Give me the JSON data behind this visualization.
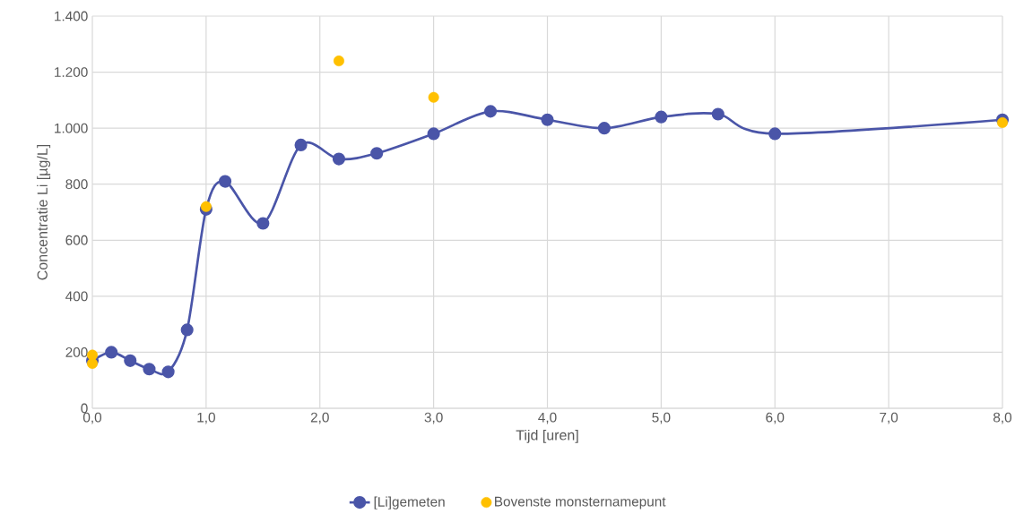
{
  "chart_data": {
    "type": "line",
    "xlabel": "Tijd [uren]",
    "ylabel": "Concentratie Li [µg/L]",
    "xlim": [
      0,
      8
    ],
    "ylim": [
      0,
      1400
    ],
    "xticks": [
      {
        "value": 0,
        "label": "0,0"
      },
      {
        "value": 1,
        "label": "1,0"
      },
      {
        "value": 2,
        "label": "2,0"
      },
      {
        "value": 3,
        "label": "3,0"
      },
      {
        "value": 4,
        "label": "4,0"
      },
      {
        "value": 5,
        "label": "5,0"
      },
      {
        "value": 6,
        "label": "6,0"
      },
      {
        "value": 7,
        "label": "7,0"
      },
      {
        "value": 8,
        "label": "8,0"
      }
    ],
    "yticks": [
      0,
      200,
      400,
      600,
      800,
      {
        "value": 1000,
        "label": "1.000"
      },
      {
        "value": 1200,
        "label": "1.200"
      },
      {
        "value": 1400,
        "label": "1.400"
      }
    ],
    "grid": true,
    "legend": "bottom",
    "marker": "circle",
    "line_style": "solid",
    "series": [
      {
        "name": "[Li]gemeten",
        "color": "#4a55a8",
        "x": [
          0,
          0.167,
          0.333,
          0.5,
          0.667,
          0.833,
          1.0,
          1.167,
          1.5,
          1.833,
          2.167,
          2.5,
          3,
          3.5,
          4,
          4.5,
          5,
          5.5,
          6,
          8
        ],
        "values": [
          170,
          200,
          170,
          140,
          130,
          280,
          710,
          810,
          660,
          940,
          890,
          910,
          980,
          1060,
          1030,
          1000,
          1040,
          1050,
          980,
          1030
        ]
      },
      {
        "name": "Bovenste monsternamepunt",
        "type": "scatter",
        "color": "#ffc000",
        "x": [
          0,
          0,
          1,
          2.167,
          3,
          8
        ],
        "values": [
          190,
          160,
          720,
          1240,
          1110,
          1020
        ]
      }
    ]
  }
}
